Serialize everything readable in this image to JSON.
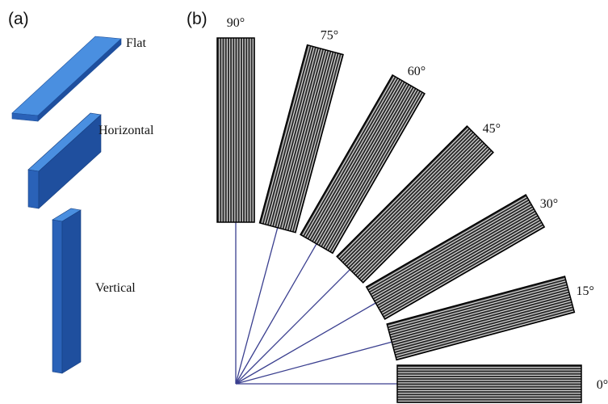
{
  "panel_a": {
    "label": "(a)",
    "orientations": [
      "Flat",
      "Horizontal",
      "Vertical"
    ]
  },
  "panel_b": {
    "label": "(b)",
    "specimens": [
      {
        "angle": 90,
        "label": "90°"
      },
      {
        "angle": 75,
        "label": "75°"
      },
      {
        "angle": 60,
        "label": "60°"
      },
      {
        "angle": 45,
        "label": "45°"
      },
      {
        "angle": 30,
        "label": "30°"
      },
      {
        "angle": 15,
        "label": "15°"
      },
      {
        "angle": 0,
        "label": "0°"
      }
    ]
  }
}
